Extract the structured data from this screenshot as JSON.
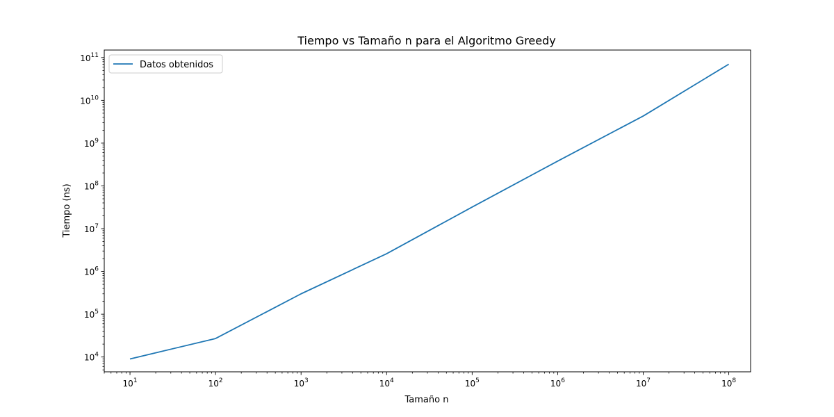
{
  "chart_data": {
    "type": "line",
    "title": "Tiempo vs Tamaño n para el Algoritmo Greedy",
    "xlabel": "Tamaño n",
    "ylabel": "Tiempo (ns)",
    "x_scale": "log",
    "y_scale": "log",
    "xlim": [
      5,
      180000000
    ],
    "ylim": [
      4500,
      150000000000
    ],
    "x_tick_labels": [
      {
        "base": "10",
        "exp": "1",
        "value": 10
      },
      {
        "base": "10",
        "exp": "2",
        "value": 100
      },
      {
        "base": "10",
        "exp": "3",
        "value": 1000
      },
      {
        "base": "10",
        "exp": "4",
        "value": 10000
      },
      {
        "base": "10",
        "exp": "5",
        "value": 100000
      },
      {
        "base": "10",
        "exp": "6",
        "value": 1000000
      },
      {
        "base": "10",
        "exp": "7",
        "value": 10000000
      },
      {
        "base": "10",
        "exp": "8",
        "value": 100000000
      }
    ],
    "y_tick_labels": [
      {
        "base": "10",
        "exp": "4",
        "value": 10000
      },
      {
        "base": "10",
        "exp": "5",
        "value": 100000
      },
      {
        "base": "10",
        "exp": "6",
        "value": 1000000
      },
      {
        "base": "10",
        "exp": "7",
        "value": 10000000
      },
      {
        "base": "10",
        "exp": "8",
        "value": 100000000
      },
      {
        "base": "10",
        "exp": "9",
        "value": 1000000000
      },
      {
        "base": "10",
        "exp": "10",
        "value": 10000000000
      },
      {
        "base": "10",
        "exp": "11",
        "value": 100000000000
      }
    ],
    "grid": false,
    "legend_position": "upper-left",
    "series": [
      {
        "name": "Datos obtenidos",
        "color": "#1f77b4",
        "x": [
          10,
          100,
          1000,
          10000,
          100000,
          1000000,
          10000000,
          100000000
        ],
        "y": [
          9000,
          27000,
          300000,
          2600000,
          32000000,
          380000000,
          4300000000,
          70000000000
        ]
      }
    ]
  }
}
